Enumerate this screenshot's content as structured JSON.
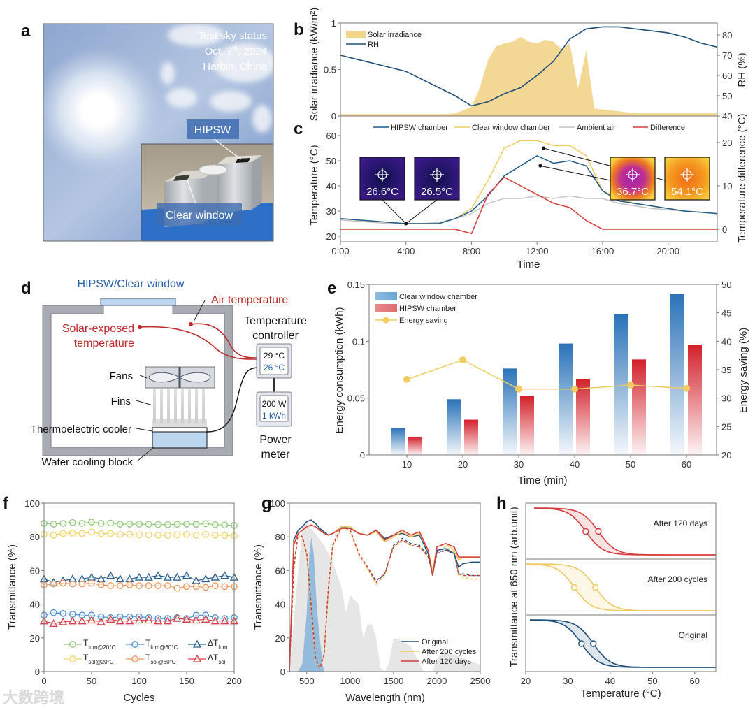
{
  "watermark": "大数跨境",
  "panel_a": {
    "label": "a",
    "sky_status": "Test sky status",
    "date_prefix": "Oct. 7",
    "date_sup": "th",
    "date_suffix": ", 2024",
    "location": "Harbin, China",
    "hipsw_tag": "HIPSW",
    "clear_tag": "Clear window"
  },
  "panel_d": {
    "label": "d",
    "window_title": "HIPSW/Clear window",
    "air_temperature": "Air temperature",
    "solar_exposed_1": "Solar-exposed",
    "solar_exposed_2": "temperature",
    "controller_1": "Temperature",
    "controller_2": "controller",
    "reading_red": "29 °C",
    "reading_blue": "26 °C",
    "power_w": "200 W",
    "power_kwh": "1 kWh",
    "power_label_1": "Power",
    "power_label_2": "meter",
    "fans": "Fans",
    "fins": "Fins",
    "tec": "Thermoelectric cooler",
    "water_block": "Water cooling block"
  },
  "colors": {
    "solar": "#f2d48a",
    "rh": "#1f4e79",
    "hipsw": "#1f5a8a",
    "clear": "#f0cc62",
    "ambient": "#c4c4c4",
    "difference": "#d63a3a",
    "bar_clear": "#2a72b8",
    "bar_hipsw": "#d2202a",
    "saving": "#f0cc62",
    "t_lum20": "#8fc97a",
    "t_sol20": "#f0d36a",
    "t_lum60": "#4a8fd0",
    "t_sol60": "#f0955a",
    "d_lum": "#2a5f8a",
    "d_sol": "#d9404a",
    "original": "#1f4e79",
    "after200": "#f0c860",
    "after120": "#d63a3a"
  },
  "chart_data": [
    {
      "panel": "b",
      "type": "area+line",
      "ylabel": "Solar irradiance (kW/m²)",
      "ylabel_right": "RH (%)",
      "xlim": [
        0,
        23
      ],
      "ylim": [
        0,
        1
      ],
      "ylim_right": [
        40,
        85
      ],
      "yticks": [
        0,
        0.5,
        1
      ],
      "yticks_right": [
        40,
        50,
        60,
        70,
        80
      ],
      "legend": [
        "Solar irradiance",
        "RH"
      ],
      "solar_x_step_h": 0.5,
      "solar": [
        0.02,
        0.02,
        0.02,
        0.02,
        0.02,
        0.02,
        0.02,
        0.02,
        0.02,
        0.02,
        0.02,
        0.02,
        0.02,
        0.02,
        0.03,
        0.06,
        0.1,
        0.3,
        0.6,
        0.75,
        0.78,
        0.8,
        0.85,
        0.8,
        0.78,
        0.82,
        0.8,
        0.72,
        0.78,
        0.3,
        0.7,
        0.08,
        0.07,
        0.06,
        0.05,
        0.04,
        0.03,
        0.03,
        0.03,
        0.03,
        0.03,
        0.03,
        0.03,
        0.03,
        0.03,
        0.03,
        0.03
      ],
      "rh_hours": [
        0,
        1,
        2,
        3,
        4,
        5,
        6,
        7,
        8,
        9,
        10,
        11,
        12,
        13,
        14,
        15,
        16,
        17,
        18,
        19,
        20,
        21,
        22,
        23
      ],
      "rh": [
        70,
        68,
        66,
        64,
        62,
        58,
        54,
        50,
        45,
        47,
        51,
        54,
        60,
        67,
        78,
        83,
        84,
        84,
        83,
        82,
        81,
        79,
        76,
        74
      ]
    },
    {
      "panel": "c",
      "type": "line",
      "xlabel": "Time",
      "ylabel": "Temperature (°C)",
      "ylabel_right": "Temperature difference (°C)",
      "xlim": [
        0,
        23
      ],
      "ylim": [
        17.8,
        67.8
      ],
      "ylim_right": [
        -2.9,
        26.5
      ],
      "xticks": [
        "0:00",
        "4:00",
        "8:00",
        "12:00",
        "16:00",
        "20:00"
      ],
      "yticks": [
        20,
        30,
        40,
        50,
        60
      ],
      "yticks_right": [
        0,
        10,
        20
      ],
      "hours": [
        0,
        1,
        2,
        3,
        4,
        5,
        6,
        7,
        8,
        9,
        10,
        11,
        12,
        13,
        14,
        15,
        16,
        17,
        18,
        19,
        20,
        21,
        22,
        23
      ],
      "series": [
        {
          "name": "HIPSW chamber",
          "values": [
            27,
            26.5,
            26,
            25.5,
            25,
            25,
            25,
            27,
            30,
            36,
            44,
            48,
            52,
            49,
            50,
            48,
            38,
            34,
            33,
            32,
            31,
            30,
            29.5,
            29
          ]
        },
        {
          "name": "Clear window chamber",
          "values": [
            27,
            26.5,
            26,
            25.5,
            25,
            25,
            25,
            27,
            31,
            42,
            55,
            58,
            58,
            56,
            56,
            52,
            38,
            35,
            33,
            32,
            31,
            30,
            29.5,
            29
          ]
        },
        {
          "name": "Ambient air",
          "values": [
            26.5,
            26,
            25.5,
            25,
            25,
            25,
            25.5,
            27,
            29,
            33,
            35,
            35,
            36,
            35,
            36,
            35,
            35,
            33,
            32,
            31,
            30.5,
            30,
            29.5,
            29
          ]
        },
        {
          "name": "Difference",
          "axis": "right",
          "values": [
            0,
            0,
            0,
            0,
            0,
            0,
            0,
            0,
            -1,
            8,
            12,
            10,
            8,
            6,
            5,
            2,
            0,
            0,
            0,
            0,
            0,
            0,
            0,
            0
          ]
        }
      ],
      "thermal_images": [
        {
          "value": "26.6°C",
          "time_h": 4.0,
          "temp": 25
        },
        {
          "value": "26.5°C",
          "time_h": 4.0,
          "temp": 25
        },
        {
          "value": "36.7°C",
          "time_h": 12.2,
          "temp": 48
        },
        {
          "value": "54.1°C",
          "time_h": 12.4,
          "temp": 55
        }
      ]
    },
    {
      "panel": "e",
      "type": "bar+line",
      "xlabel": "Time (min)",
      "ylabel": "Energy consumption (kWh)",
      "ylabel_right": "Energy saving (%)",
      "categories": [
        10,
        20,
        30,
        40,
        50,
        60
      ],
      "ylim": [
        0,
        0.15
      ],
      "ylim_right": [
        20,
        50
      ],
      "yticks": [
        0,
        0.05,
        0.1,
        0.15
      ],
      "yticks_right": [
        20,
        25,
        30,
        35,
        40,
        45,
        50
      ],
      "series": [
        {
          "name": "Clear window chamber",
          "values": [
            0.024,
            0.049,
            0.076,
            0.098,
            0.124,
            0.142
          ]
        },
        {
          "name": "HIPSW chamber",
          "values": [
            0.016,
            0.031,
            0.052,
            0.067,
            0.084,
            0.097
          ]
        },
        {
          "name": "Energy saving",
          "axis": "right",
          "values": [
            33.3,
            36.7,
            31.6,
            31.6,
            32.3,
            31.7
          ]
        }
      ]
    },
    {
      "panel": "f",
      "type": "line",
      "xlabel": "Cycles",
      "ylabel": "Transmittance (%)",
      "xlim": [
        0,
        200
      ],
      "ylim": [
        0,
        100
      ],
      "xticks": [
        0,
        50,
        100,
        150,
        200
      ],
      "yticks": [
        0,
        20,
        40,
        60,
        80,
        100
      ],
      "x": [
        0,
        10,
        20,
        30,
        40,
        50,
        60,
        70,
        80,
        90,
        100,
        110,
        120,
        130,
        140,
        150,
        160,
        170,
        180,
        190,
        200
      ],
      "series": [
        {
          "name": "T",
          "sub": "lum@20°C",
          "marker": "circle",
          "values": [
            88,
            87.5,
            88,
            88.5,
            88,
            88.8,
            88,
            88.2,
            87.5,
            87.6,
            87.5,
            87.5,
            87.3,
            87.2,
            87.5,
            87.6,
            87.4,
            87.8,
            87.2,
            87,
            86.8
          ]
        },
        {
          "name": "T",
          "sub": "lum@60°C",
          "marker": "circle",
          "values": [
            33.5,
            35,
            34.5,
            34,
            33.5,
            33.5,
            32.5,
            32,
            32.5,
            32.5,
            32.5,
            32,
            31.5,
            31.5,
            32,
            31.5,
            33.5,
            33.5,
            32,
            31.5,
            32
          ]
        },
        {
          "name": "ΔT",
          "sub": "lum",
          "marker": "triangle",
          "values": [
            55,
            53,
            54,
            55,
            55,
            56,
            55,
            57,
            55,
            55,
            56,
            56,
            57,
            56,
            56,
            57,
            54,
            55,
            56,
            57,
            56
          ]
        },
        {
          "name": "T",
          "sub": "sol@20°C",
          "marker": "circle",
          "values": [
            81.5,
            81,
            82,
            82.2,
            82,
            82.8,
            81.8,
            82,
            81.4,
            81.5,
            81.2,
            81.2,
            81,
            81,
            81.2,
            81.4,
            81,
            81.4,
            81,
            80.8,
            80.5
          ]
        },
        {
          "name": "T",
          "sub": "sol@60°C",
          "marker": "circle",
          "values": [
            51.5,
            52,
            52.5,
            52,
            52,
            52.5,
            51.5,
            51,
            51,
            51.5,
            51,
            51,
            51,
            51,
            49.5,
            50.5,
            50.5,
            50,
            51,
            50.5,
            50.5
          ]
        },
        {
          "name": "ΔT",
          "sub": "sol",
          "marker": "triangle",
          "values": [
            30,
            28.5,
            29.5,
            30,
            30,
            30.5,
            29.5,
            31,
            30,
            30,
            30.5,
            30.5,
            30,
            30,
            31.5,
            31,
            30.5,
            31,
            30,
            30,
            30
          ]
        }
      ]
    },
    {
      "panel": "g",
      "type": "line",
      "xlabel": "Wavelength (nm)",
      "ylabel": "Transmittance (%)",
      "xlim": [
        300,
        2500
      ],
      "ylim": [
        0,
        100
      ],
      "xticks": [
        500,
        1000,
        1500,
        2000,
        2500
      ],
      "yticks": [
        0,
        20,
        40,
        60,
        80,
        100
      ],
      "x": [
        300,
        350,
        400,
        450,
        500,
        550,
        600,
        650,
        700,
        750,
        800,
        900,
        1000,
        1100,
        1200,
        1300,
        1400,
        1500,
        1600,
        1700,
        1800,
        1900,
        1950,
        2000,
        2100,
        2200,
        2250,
        2300,
        2400,
        2500
      ],
      "series": [
        {
          "name": "Original",
          "cold": [
            0,
            78,
            84,
            86,
            89,
            90,
            88,
            85,
            83,
            81,
            82,
            86,
            85,
            82,
            81,
            84,
            79,
            81,
            82,
            80,
            81,
            70,
            57,
            72,
            73,
            70,
            62,
            64,
            65,
            65
          ],
          "hot": [
            0,
            62,
            82,
            80,
            70,
            40,
            8,
            2,
            10,
            50,
            75,
            86,
            84,
            70,
            62,
            54,
            58,
            75,
            79,
            76,
            75,
            69,
            58,
            71,
            72,
            70,
            58,
            58,
            57,
            57
          ]
        },
        {
          "name": "After 200 cycles",
          "cold": [
            0,
            76,
            82,
            84,
            86,
            87,
            86,
            84,
            82,
            81,
            82,
            86,
            86,
            82,
            81,
            83,
            77,
            80,
            83,
            80,
            82,
            72,
            60,
            74,
            76,
            72,
            66,
            68,
            68,
            68
          ],
          "hot": [
            0,
            60,
            81,
            79,
            69,
            38,
            7,
            2,
            9,
            49,
            74,
            85,
            83,
            69,
            61,
            52,
            57,
            74,
            78,
            75,
            74,
            68,
            60,
            72,
            74,
            71,
            57,
            56,
            55,
            55
          ]
        },
        {
          "name": "After 120 days",
          "cold": [
            0,
            75,
            82,
            84,
            86,
            87,
            86,
            84,
            82,
            81,
            82,
            85,
            85,
            82,
            81,
            84,
            78,
            81,
            84,
            81,
            83,
            72,
            57,
            74,
            76,
            74,
            68,
            68,
            68,
            68
          ],
          "hot": [
            0,
            61,
            82,
            80,
            70,
            39,
            8,
            2,
            10,
            50,
            75,
            86,
            84,
            70,
            62,
            53,
            58,
            74,
            78,
            75,
            74,
            68,
            58,
            70,
            72,
            70,
            58,
            57,
            57,
            57
          ]
        }
      ],
      "solar_spectrum": {
        "x": [
          300,
          400,
          450,
          500,
          550,
          600,
          700,
          800,
          900,
          950,
          1000,
          1100,
          1150,
          1200,
          1250,
          1300,
          1350,
          1400,
          1450,
          1500,
          1600,
          1700,
          1800,
          1850,
          1950,
          2000,
          2100,
          2200,
          2300,
          2400,
          2500
        ],
        "y": [
          0,
          60,
          85,
          88,
          85,
          82,
          75,
          65,
          50,
          35,
          45,
          40,
          20,
          28,
          28,
          20,
          2,
          0,
          5,
          20,
          18,
          15,
          5,
          0,
          0,
          8,
          12,
          10,
          8,
          6,
          4
        ]
      },
      "photopic": {
        "x": [
          400,
          450,
          500,
          530,
          555,
          580,
          620,
          680,
          700
        ],
        "y": [
          0,
          5,
          35,
          70,
          80,
          70,
          35,
          5,
          0
        ]
      }
    },
    {
      "panel": "h",
      "type": "line",
      "xlabel": "Temperature (°C)",
      "ylabel": "Transmittance at 650 nm (arb.unit)",
      "xlim": [
        20,
        65
      ],
      "xticks": [
        20,
        30,
        40,
        50,
        60
      ],
      "series": [
        {
          "name": "After 120 days",
          "t_start": 22,
          "cooling_tc": 34.2,
          "heating_tc": 37.2,
          "width": 3.2
        },
        {
          "name": "After 200 cycles",
          "t_start": 20,
          "cooling_tc": 31.5,
          "heating_tc": 36.5,
          "width": 3.2
        },
        {
          "name": "Original",
          "t_start": 21,
          "cooling_tc": 33.2,
          "heating_tc": 36.0,
          "width": 3.2
        }
      ]
    }
  ]
}
